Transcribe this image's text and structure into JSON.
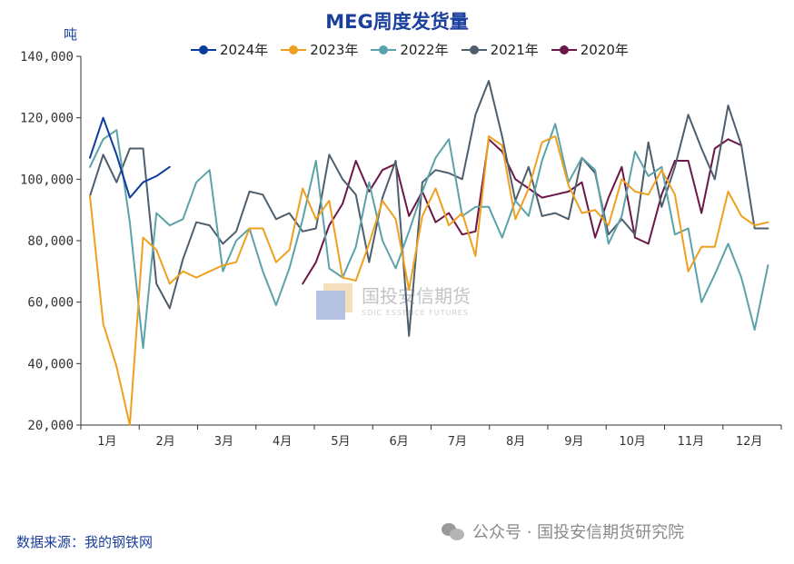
{
  "header": {
    "title": "MEG周度发货量",
    "unit": "吨"
  },
  "footer": {
    "source": "数据来源：我的钢铁网",
    "wechat": "公众号 · 国投安信期货研究院"
  },
  "watermark": {
    "name": "国投安信期货",
    "sub": "SDIC ESSENCE FUTURES"
  },
  "chart_data": {
    "type": "line",
    "title": "MEG周度发货量",
    "ylabel": "吨",
    "ylim": [
      20000,
      140000
    ],
    "yticks": [
      20000,
      40000,
      60000,
      80000,
      100000,
      120000,
      140000
    ],
    "ytick_labels": [
      "20,000",
      "40,000",
      "60,000",
      "80,000",
      "100,000",
      "120,000",
      "140,000"
    ],
    "months": [
      "1月",
      "2月",
      "3月",
      "4月",
      "5月",
      "6月",
      "7月",
      "8月",
      "9月",
      "10月",
      "11月",
      "12月"
    ],
    "week_range": [
      1,
      53
    ],
    "grid": false,
    "legend_position": "top",
    "series": [
      {
        "name": "2024年",
        "color": "#0d3d9c",
        "start_week": 1,
        "values": [
          107000,
          120000,
          108000,
          94000,
          99000,
          101000,
          104000
        ]
      },
      {
        "name": "2023年",
        "color": "#f0a020",
        "start_week": 1,
        "values": [
          94500,
          53000,
          39000,
          20000,
          81000,
          77000,
          66000,
          70000,
          68000,
          70000,
          72000,
          73000,
          84000,
          84000,
          73000,
          77000,
          97000,
          87000,
          93000,
          68000,
          67000,
          79000,
          93000,
          87000,
          64000,
          88000,
          97000,
          85000,
          89000,
          75000,
          114000,
          111000,
          87000,
          97000,
          112000,
          114000,
          98000,
          89000,
          90000,
          85000,
          100000,
          96000,
          95000,
          103000,
          95000,
          70000,
          78000,
          78000,
          96000,
          88000,
          85000,
          86000
        ]
      },
      {
        "name": "2022年",
        "color": "#5ba3a8",
        "start_week": 1,
        "values": [
          104000,
          113000,
          116000,
          86000,
          45000,
          89000,
          85000,
          87000,
          99000,
          103000,
          70000,
          80000,
          84000,
          70000,
          59000,
          71000,
          87000,
          106000,
          71000,
          68000,
          78000,
          99000,
          80000,
          71000,
          83000,
          96000,
          107000,
          113000,
          88000,
          91000,
          91000,
          81000,
          93000,
          88000,
          106000,
          118000,
          99000,
          107000,
          103000,
          79000,
          88000,
          109000,
          101000,
          104000,
          82000,
          84000,
          60000,
          69000,
          79000,
          68000,
          51000,
          72000
        ]
      },
      {
        "name": "2021年",
        "color": "#4f5e6c",
        "start_week": 1,
        "values": [
          94500,
          108000,
          99000,
          110000,
          110000,
          66000,
          58000,
          74000,
          86000,
          85000,
          79000,
          83000,
          96000,
          95000,
          87000,
          89000,
          83000,
          84000,
          108000,
          100000,
          95000,
          73000,
          94000,
          106000,
          49000,
          99000,
          103000,
          102000,
          100000,
          121000,
          132000,
          114000,
          93000,
          104000,
          88000,
          89000,
          87000,
          107000,
          102000,
          82000,
          87000,
          82000,
          112000,
          91000,
          104000,
          121000,
          110000,
          100000,
          124000,
          111000,
          84000,
          84000
        ]
      },
      {
        "name": "2020年",
        "color": "#6b1747",
        "start_week": 17,
        "values": [
          66000,
          73000,
          85000,
          92000,
          106000,
          96000,
          103000,
          105000,
          88000,
          96000,
          86000,
          89000,
          82000,
          83000,
          113000,
          109000,
          100000,
          97000,
          94000,
          95000,
          96000,
          99000,
          81000,
          94000,
          104000,
          81000,
          79000,
          95000,
          106000,
          106000,
          89000,
          110000,
          113000,
          111000
        ]
      }
    ]
  }
}
